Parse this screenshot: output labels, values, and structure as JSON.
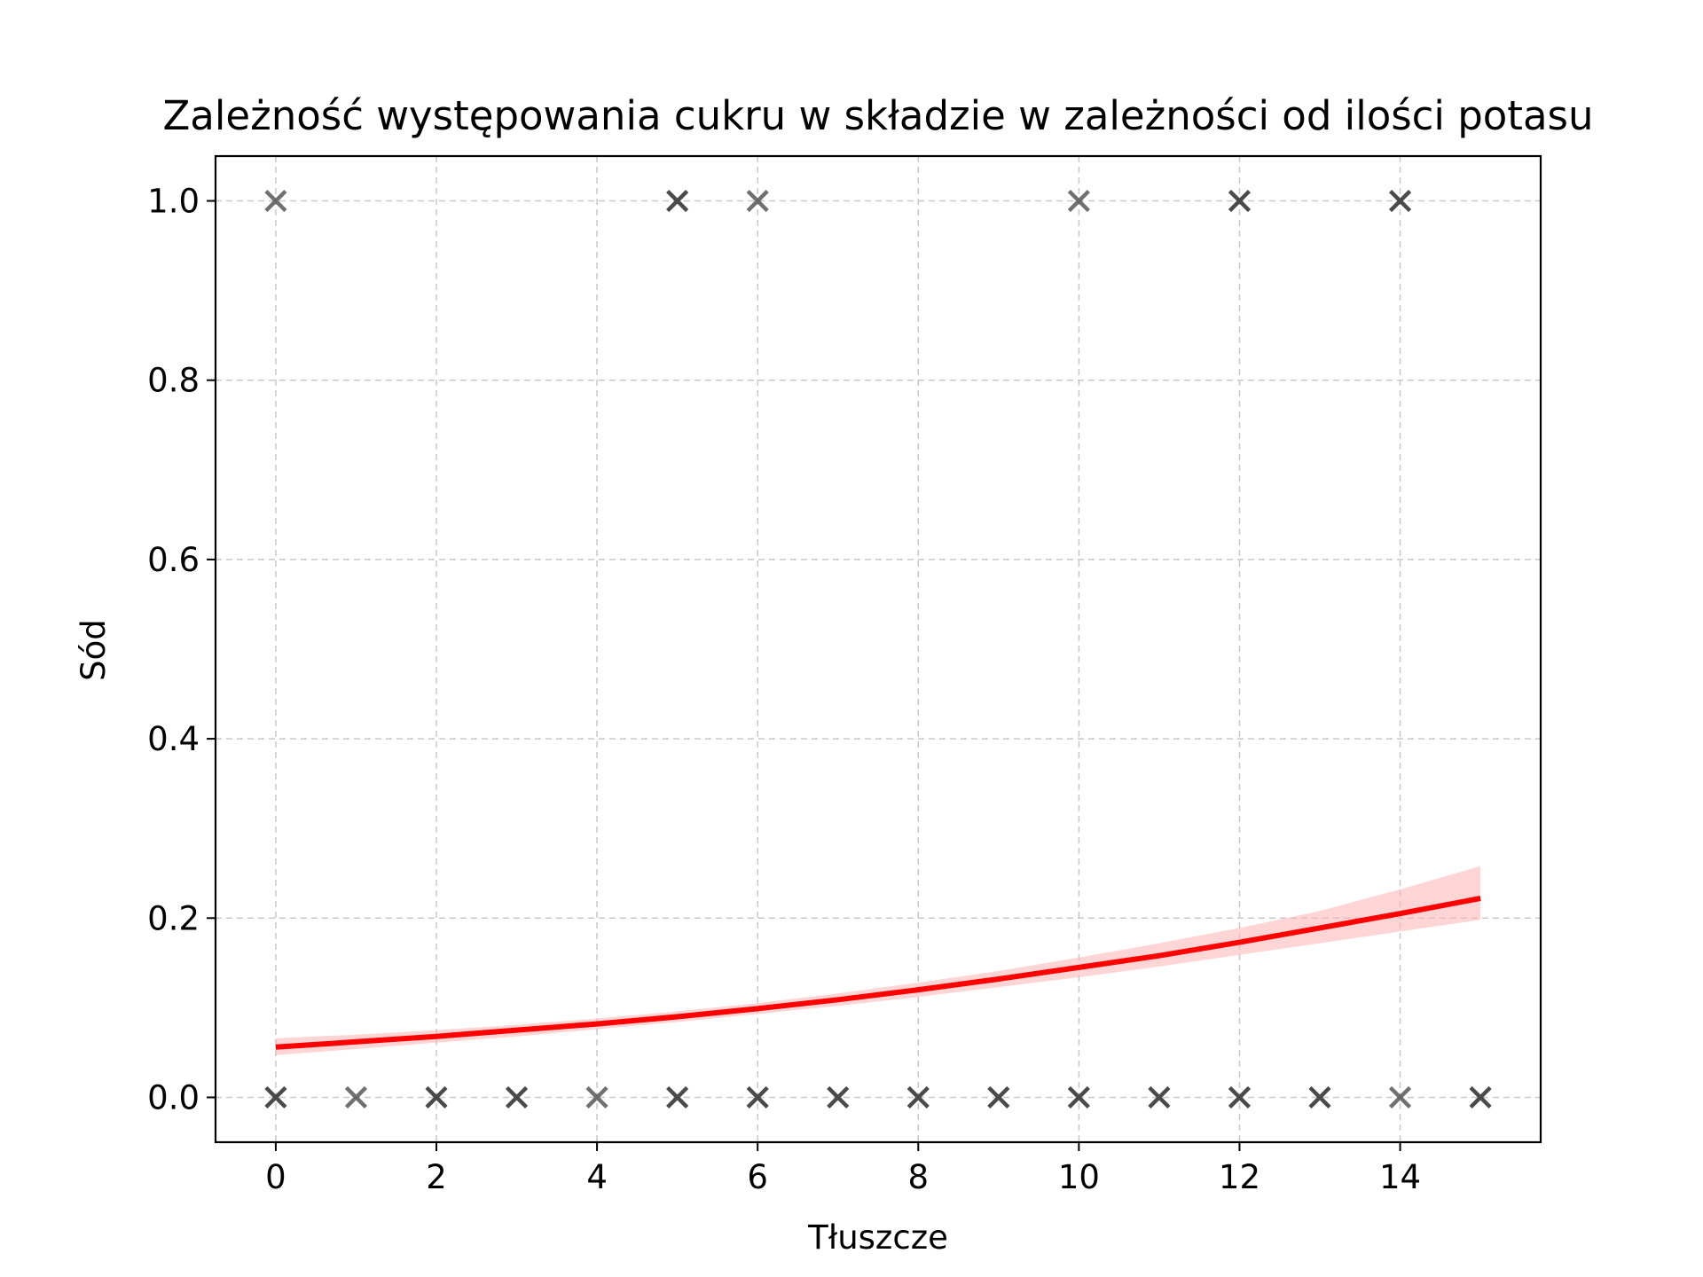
{
  "chart_data": {
    "type": "scatter",
    "title": "Zależność występowania cukru w składzie w zależności od ilości potasu",
    "xlabel": "Tłuszcze",
    "ylabel": "Sód",
    "xlim": [
      -0.75,
      15.75
    ],
    "ylim": [
      -0.05,
      1.05
    ],
    "xticks": [
      0,
      2,
      4,
      6,
      8,
      10,
      12,
      14
    ],
    "xtick_labels": [
      "0",
      "2",
      "4",
      "6",
      "8",
      "10",
      "12",
      "14"
    ],
    "yticks": [
      0.0,
      0.2,
      0.4,
      0.6,
      0.8,
      1.0
    ],
    "ytick_labels": [
      "0.0",
      "0.2",
      "0.4",
      "0.6",
      "0.8",
      "1.0"
    ],
    "grid": true,
    "marker": "x",
    "marker_color": "#404040",
    "points": [
      {
        "x": 0,
        "y": 1,
        "density": "light"
      },
      {
        "x": 5,
        "y": 1,
        "density": "dark"
      },
      {
        "x": 6,
        "y": 1,
        "density": "light"
      },
      {
        "x": 10,
        "y": 1,
        "density": "light"
      },
      {
        "x": 12,
        "y": 1,
        "density": "dark"
      },
      {
        "x": 14,
        "y": 1,
        "density": "dark"
      },
      {
        "x": 0,
        "y": 0,
        "density": "dark"
      },
      {
        "x": 1,
        "y": 0,
        "density": "light"
      },
      {
        "x": 2,
        "y": 0,
        "density": "dark"
      },
      {
        "x": 3,
        "y": 0,
        "density": "dark"
      },
      {
        "x": 4,
        "y": 0,
        "density": "light"
      },
      {
        "x": 5,
        "y": 0,
        "density": "dark"
      },
      {
        "x": 6,
        "y": 0,
        "density": "dark"
      },
      {
        "x": 7,
        "y": 0,
        "density": "dark"
      },
      {
        "x": 8,
        "y": 0,
        "density": "dark"
      },
      {
        "x": 9,
        "y": 0,
        "density": "dark"
      },
      {
        "x": 10,
        "y": 0,
        "density": "dark"
      },
      {
        "x": 11,
        "y": 0,
        "density": "dark"
      },
      {
        "x": 12,
        "y": 0,
        "density": "dark"
      },
      {
        "x": 13,
        "y": 0,
        "density": "dark"
      },
      {
        "x": 14,
        "y": 0,
        "density": "light"
      },
      {
        "x": 15,
        "y": 0,
        "density": "dark"
      }
    ],
    "fit_line": {
      "color": "#ff0000",
      "band_color": "#ffb3b3",
      "x": [
        0,
        1,
        2,
        3,
        4,
        5,
        6,
        7,
        8,
        9,
        10,
        11,
        12,
        13,
        14,
        15
      ],
      "y": [
        0.056,
        0.062,
        0.068,
        0.075,
        0.082,
        0.09,
        0.099,
        0.109,
        0.12,
        0.132,
        0.145,
        0.158,
        0.173,
        0.189,
        0.205,
        0.222
      ],
      "ci_lower": [
        0.047,
        0.054,
        0.061,
        0.068,
        0.076,
        0.084,
        0.093,
        0.102,
        0.112,
        0.123,
        0.134,
        0.146,
        0.159,
        0.172,
        0.185,
        0.198
      ],
      "ci_upper": [
        0.066,
        0.07,
        0.075,
        0.081,
        0.088,
        0.096,
        0.105,
        0.116,
        0.128,
        0.141,
        0.156,
        0.172,
        0.189,
        0.208,
        0.232,
        0.258
      ]
    }
  }
}
